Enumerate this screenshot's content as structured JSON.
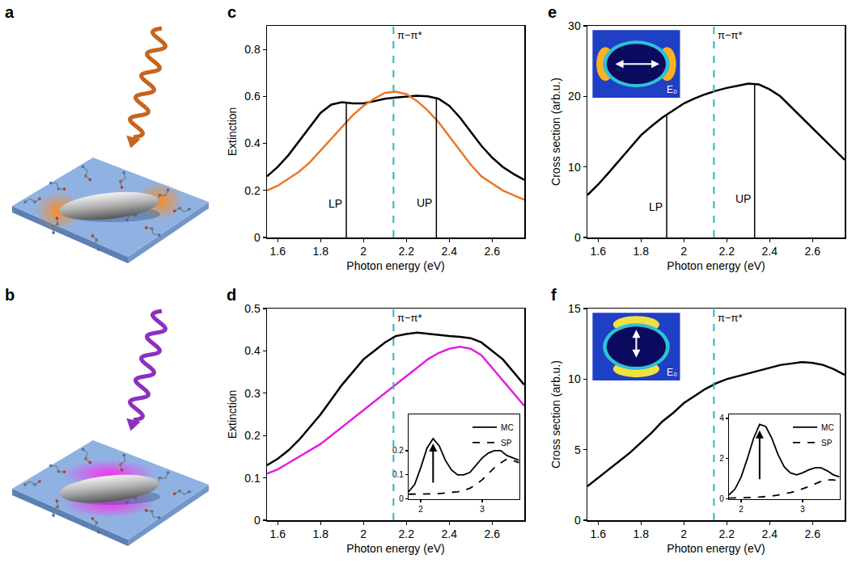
{
  "diagrams": [
    {
      "panel": "a"
    },
    {
      "panel": "b"
    }
  ],
  "chart_data": [
    {
      "panel": "c",
      "type": "line",
      "x_label": "Photon energy (eV)",
      "y_label": "Extinction",
      "xlim": [
        1.55,
        2.75
      ],
      "xticks": [
        1.6,
        1.8,
        2,
        2.2,
        2.4,
        2.6
      ],
      "ylim": [
        0,
        0.9
      ],
      "yticks": [
        0,
        0.2,
        0.4,
        0.6,
        0.8
      ],
      "x": [
        1.55,
        1.6,
        1.65,
        1.7,
        1.75,
        1.8,
        1.85,
        1.9,
        1.95,
        2,
        2.05,
        2.1,
        2.15,
        2.2,
        2.25,
        2.3,
        2.35,
        2.4,
        2.45,
        2.5,
        2.55,
        2.6,
        2.65,
        2.7,
        2.75
      ],
      "series": [
        {
          "color": "#000000",
          "values": [
            0.26,
            0.3,
            0.35,
            0.41,
            0.47,
            0.53,
            0.565,
            0.575,
            0.57,
            0.57,
            0.58,
            0.59,
            0.595,
            0.6,
            0.603,
            0.6,
            0.59,
            0.56,
            0.51,
            0.45,
            0.39,
            0.34,
            0.3,
            0.27,
            0.245
          ]
        },
        {
          "color": "#e8782a",
          "values": [
            0.2,
            0.22,
            0.25,
            0.28,
            0.32,
            0.37,
            0.42,
            0.47,
            0.52,
            0.56,
            0.59,
            0.615,
            0.62,
            0.61,
            0.58,
            0.54,
            0.49,
            0.43,
            0.37,
            0.31,
            0.26,
            0.23,
            0.2,
            0.18,
            0.16
          ]
        }
      ],
      "annotations": [
        {
          "text": "π−π*",
          "x": 2.14,
          "color": "#29b6c9",
          "line_style": "dashed"
        },
        {
          "text": "LP",
          "x": 1.92,
          "y": 0.573,
          "color": "#000000",
          "line_style": "solid"
        },
        {
          "text": "UP",
          "x": 2.34,
          "y": 0.595,
          "color": "#000000",
          "line_style": "solid"
        }
      ]
    },
    {
      "panel": "d",
      "type": "line",
      "x_label": "Photon energy (eV)",
      "y_label": "Extinction",
      "xlim": [
        1.55,
        2.75
      ],
      "xticks": [
        1.6,
        1.8,
        2,
        2.2,
        2.4,
        2.6
      ],
      "ylim": [
        0,
        0.5
      ],
      "yticks": [
        0,
        0.1,
        0.2,
        0.3,
        0.4,
        0.5
      ],
      "x": [
        1.55,
        1.6,
        1.65,
        1.7,
        1.75,
        1.8,
        1.85,
        1.9,
        1.95,
        2,
        2.05,
        2.1,
        2.15,
        2.2,
        2.25,
        2.3,
        2.35,
        2.4,
        2.45,
        2.5,
        2.55,
        2.6,
        2.65,
        2.7,
        2.75
      ],
      "series": [
        {
          "color": "#000000",
          "values": [
            0.13,
            0.145,
            0.165,
            0.19,
            0.22,
            0.25,
            0.285,
            0.32,
            0.35,
            0.38,
            0.4,
            0.42,
            0.435,
            0.44,
            0.443,
            0.44,
            0.437,
            0.435,
            0.433,
            0.43,
            0.42,
            0.4,
            0.38,
            0.35,
            0.32
          ]
        },
        {
          "color": "#e020e0",
          "values": [
            0.11,
            0.12,
            0.135,
            0.15,
            0.165,
            0.18,
            0.2,
            0.22,
            0.24,
            0.26,
            0.28,
            0.3,
            0.32,
            0.34,
            0.36,
            0.38,
            0.395,
            0.405,
            0.41,
            0.405,
            0.39,
            0.36,
            0.33,
            0.3,
            0.27
          ]
        }
      ],
      "annotations": [
        {
          "text": "π−π*",
          "x": 2.14,
          "color": "#29b6c9",
          "line_style": "dashed"
        }
      ],
      "inset": {
        "xlim": [
          1.8,
          3.6
        ],
        "xticks": [
          2,
          3
        ],
        "ylim": [
          0,
          0.35
        ],
        "yticks": [
          0,
          0.1,
          0.2
        ],
        "legend": "top right",
        "x": [
          1.8,
          1.9,
          2,
          2.1,
          2.2,
          2.3,
          2.4,
          2.5,
          2.6,
          2.7,
          2.8,
          2.9,
          3,
          3.1,
          3.2,
          3.3,
          3.4,
          3.5,
          3.6
        ],
        "series": [
          {
            "name": "MC",
            "color": "#000000",
            "line_style": "solid",
            "values": [
              0.03,
              0.06,
              0.13,
              0.21,
              0.25,
              0.22,
              0.16,
              0.12,
              0.1,
              0.1,
              0.11,
              0.14,
              0.17,
              0.19,
              0.2,
              0.2,
              0.18,
              0.17,
              0.16
            ]
          },
          {
            "name": "SP",
            "color": "#000000",
            "line_style": "dashed",
            "values": [
              0.02,
              0.02,
              0.02,
              0.02,
              0.02,
              0.022,
              0.025,
              0.027,
              0.03,
              0.035,
              0.045,
              0.06,
              0.08,
              0.105,
              0.13,
              0.15,
              0.165,
              0.16,
              0.15
            ]
          }
        ]
      }
    },
    {
      "panel": "e",
      "type": "line",
      "x_label": "Photon energy (eV)",
      "y_label": "Cross section (arb.u.)",
      "xlim": [
        1.55,
        2.75
      ],
      "xticks": [
        1.6,
        1.8,
        2,
        2.2,
        2.4,
        2.6
      ],
      "ylim": [
        0,
        30
      ],
      "yticks": [
        0,
        10,
        20,
        30
      ],
      "x": [
        1.55,
        1.6,
        1.65,
        1.7,
        1.75,
        1.8,
        1.85,
        1.9,
        1.95,
        2,
        2.05,
        2.1,
        2.15,
        2.2,
        2.25,
        2.3,
        2.35,
        2.4,
        2.45,
        2.5,
        2.55,
        2.6,
        2.65,
        2.7,
        2.75
      ],
      "series": [
        {
          "color": "#000000",
          "values": [
            6,
            7.5,
            9.2,
            11,
            12.8,
            14.5,
            15.8,
            17,
            18,
            19,
            19.7,
            20.3,
            20.8,
            21.2,
            21.5,
            21.8,
            21.7,
            21,
            20,
            18.5,
            17,
            15.5,
            14,
            12.5,
            11
          ]
        }
      ],
      "annotations": [
        {
          "text": "π−π*",
          "x": 2.14,
          "color": "#29b6c9",
          "line_style": "dashed"
        },
        {
          "text": "LP",
          "x": 1.92,
          "y": 17.3,
          "color": "#000000",
          "line_style": "solid"
        },
        {
          "text": "UP",
          "x": 2.33,
          "y": 21.8,
          "color": "#000000",
          "line_style": "solid"
        }
      ],
      "field_inset": {
        "text": "E₀"
      }
    },
    {
      "panel": "f",
      "type": "line",
      "x_label": "Photon energy (eV)",
      "y_label": "Cross section (arb.u.)",
      "xlim": [
        1.55,
        2.75
      ],
      "xticks": [
        1.6,
        1.8,
        2,
        2.2,
        2.4,
        2.6
      ],
      "ylim": [
        0,
        15
      ],
      "yticks": [
        0,
        5,
        10,
        15
      ],
      "x": [
        1.55,
        1.6,
        1.65,
        1.7,
        1.75,
        1.8,
        1.85,
        1.9,
        1.95,
        2,
        2.05,
        2.1,
        2.15,
        2.2,
        2.25,
        2.3,
        2.35,
        2.4,
        2.45,
        2.5,
        2.55,
        2.6,
        2.65,
        2.7,
        2.75
      ],
      "series": [
        {
          "color": "#000000",
          "values": [
            2.4,
            3,
            3.6,
            4.2,
            4.8,
            5.5,
            6.2,
            7,
            7.6,
            8.3,
            8.8,
            9.3,
            9.7,
            10,
            10.2,
            10.4,
            10.6,
            10.8,
            11,
            11.1,
            11.2,
            11.15,
            11,
            10.7,
            10.3
          ]
        }
      ],
      "annotations": [
        {
          "text": "π−π*",
          "x": 2.14,
          "color": "#29b6c9",
          "line_style": "dashed"
        }
      ],
      "field_inset": {
        "text": "E₀"
      },
      "inset": {
        "xlim": [
          1.8,
          3.6
        ],
        "xticks": [
          2,
          3
        ],
        "ylim": [
          0,
          4.2
        ],
        "yticks": [
          0,
          2,
          4
        ],
        "legend": "top right",
        "x": [
          1.8,
          1.9,
          2,
          2.1,
          2.2,
          2.3,
          2.4,
          2.5,
          2.6,
          2.7,
          2.8,
          2.9,
          3,
          3.1,
          3.2,
          3.3,
          3.4,
          3.5,
          3.6
        ],
        "series": [
          {
            "name": "MC",
            "color": "#000000",
            "line_style": "solid",
            "values": [
              0.2,
              0.5,
              1.1,
              2,
              3,
              3.7,
              3.6,
              3,
              2.2,
              1.6,
              1.3,
              1.2,
              1.3,
              1.45,
              1.55,
              1.55,
              1.4,
              1.2,
              1.1
            ]
          },
          {
            "name": "SP",
            "color": "#000000",
            "line_style": "dashed",
            "values": [
              0.05,
              0.05,
              0.06,
              0.07,
              0.08,
              0.1,
              0.12,
              0.15,
              0.2,
              0.25,
              0.32,
              0.4,
              0.5,
              0.62,
              0.75,
              0.88,
              0.95,
              0.95,
              0.9
            ]
          }
        ]
      }
    }
  ]
}
